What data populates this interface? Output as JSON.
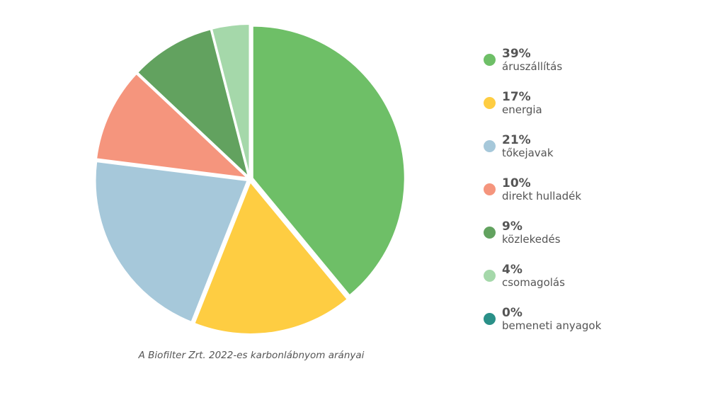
{
  "chart_data": {
    "type": "pie",
    "title": "",
    "caption": "A Biofilter Zrt. 2022-es karbonlábnyom arányai",
    "legend_position": "right",
    "slices": [
      {
        "label": "áruszállítás",
        "pct_label": "39%",
        "value": 39,
        "color": "#6ebf67"
      },
      {
        "label": "energia",
        "pct_label": "17%",
        "value": 17,
        "color": "#fecd42"
      },
      {
        "label": "tőkejavak",
        "pct_label": "21%",
        "value": 21,
        "color": "#a6c8da"
      },
      {
        "label": "direkt hulladék",
        "pct_label": "10%",
        "value": 10,
        "color": "#f5957d"
      },
      {
        "label": "közlekedés",
        "pct_label": "9%",
        "value": 9,
        "color": "#62a25f"
      },
      {
        "label": "csomagolás",
        "pct_label": "4%",
        "value": 4,
        "color": "#a5d8aa"
      },
      {
        "label": "bemeneti anyagok",
        "pct_label": "0%",
        "value": 0,
        "color": "#2a9088"
      }
    ]
  }
}
